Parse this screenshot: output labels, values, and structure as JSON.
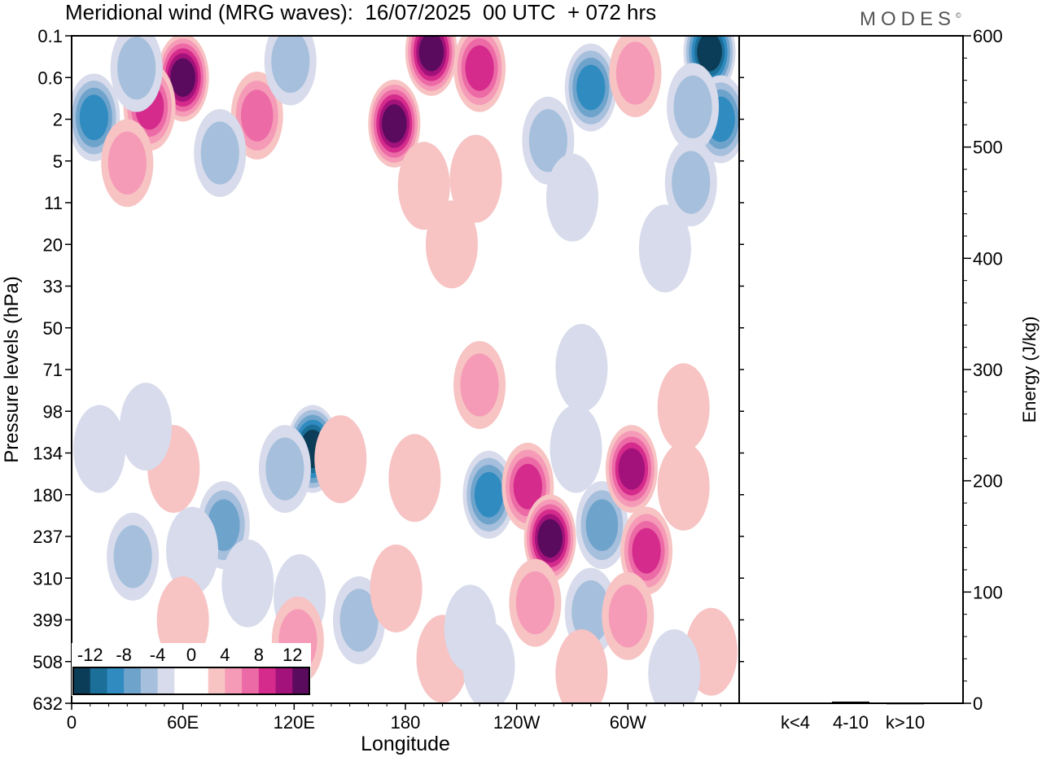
{
  "header": {
    "title": "Meridional wind (MRG waves):  16/07/2025  00 UTC  + 072 hrs",
    "logo": "MODES",
    "logo_mark": "©"
  },
  "chart_data": [
    {
      "type": "heatmap",
      "title": "Meridional wind (MRG waves):  16/07/2025  00 UTC  + 072 hrs",
      "xlabel": "Longitude",
      "ylabel": "Pressure levels (hPa)",
      "x_ticks": [
        "0",
        "60E",
        "120E",
        "180",
        "120W",
        "60W"
      ],
      "x_tick_degrees": [
        0,
        60,
        120,
        180,
        240,
        300
      ],
      "xlim": [
        0,
        360
      ],
      "y_ticks": [
        "0.1",
        "0.6",
        "2",
        "5",
        "11",
        "20",
        "33",
        "50",
        "71",
        "98",
        "134",
        "180",
        "237",
        "310",
        "399",
        "508",
        "632"
      ],
      "colorbar": {
        "labels": [
          "-12",
          "-8",
          "-4",
          "0",
          "4",
          "8",
          "12"
        ],
        "colors": [
          "#0b3d58",
          "#1b6f99",
          "#2f8bc0",
          "#6ea3cc",
          "#a5bfdc",
          "#d7dbeb",
          "#ffffff",
          "#ffffff",
          "#f7c3c3",
          "#f59ab7",
          "#ec6aa6",
          "#d42b8c",
          "#a3127a",
          "#5a0b5e"
        ]
      },
      "blobs": [
        {
          "lon": 60,
          "lev": 0.6,
          "value": 14
        },
        {
          "lon": 42,
          "lev": 1.4,
          "value": 9
        },
        {
          "lon": 100,
          "lev": 1.8,
          "value": 8
        },
        {
          "lon": 12,
          "lev": 1.9,
          "value": -10
        },
        {
          "lon": 35,
          "lev": 0.4,
          "value": -5
        },
        {
          "lon": 80,
          "lev": 4.2,
          "value": -6
        },
        {
          "lon": 30,
          "lev": 5.2,
          "value": 5
        },
        {
          "lon": 174,
          "lev": 2.2,
          "value": 14
        },
        {
          "lon": 194,
          "lev": 0.2,
          "value": 13
        },
        {
          "lon": 220,
          "lev": 0.4,
          "value": 9
        },
        {
          "lon": 118,
          "lev": 0.3,
          "value": -5
        },
        {
          "lon": 280,
          "lev": 0.8,
          "value": -10
        },
        {
          "lon": 304,
          "lev": 0.5,
          "value": 6
        },
        {
          "lon": 344,
          "lev": 0.2,
          "value": -14
        },
        {
          "lon": 350,
          "lev": 2.0,
          "value": -9
        },
        {
          "lon": 335,
          "lev": 1.4,
          "value": -6
        },
        {
          "lon": 257,
          "lev": 3.2,
          "value": -6
        },
        {
          "lon": 334,
          "lev": 7.5,
          "value": -5
        },
        {
          "lon": 190,
          "lev": 8.0,
          "value": 4
        },
        {
          "lon": 218,
          "lev": 7.0,
          "value": 4
        },
        {
          "lon": 205,
          "lev": 20,
          "value": 3
        },
        {
          "lon": 320,
          "lev": 21,
          "value": -3
        },
        {
          "lon": 130,
          "lev": 130,
          "value": -13
        },
        {
          "lon": 115,
          "lev": 150,
          "value": -6
        },
        {
          "lon": 82,
          "lev": 220,
          "value": -8
        },
        {
          "lon": 65,
          "lev": 260,
          "value": -4
        },
        {
          "lon": 33,
          "lev": 270,
          "value": -5
        },
        {
          "lon": 55,
          "lev": 150,
          "value": 4
        },
        {
          "lon": 60,
          "lev": 400,
          "value": 4
        },
        {
          "lon": 95,
          "lev": 320,
          "value": -3
        },
        {
          "lon": 123,
          "lev": 350,
          "value": -3
        },
        {
          "lon": 122,
          "lev": 450,
          "value": 5
        },
        {
          "lon": 155,
          "lev": 400,
          "value": -6
        },
        {
          "lon": 145,
          "lev": 140,
          "value": 4
        },
        {
          "lon": 185,
          "lev": 160,
          "value": 4
        },
        {
          "lon": 175,
          "lev": 330,
          "value": 4
        },
        {
          "lon": 200,
          "lev": 500,
          "value": 4
        },
        {
          "lon": 215,
          "lev": 420,
          "value": -3
        },
        {
          "lon": 225,
          "lev": 180,
          "value": -10
        },
        {
          "lon": 220,
          "lev": 80,
          "value": 5
        },
        {
          "lon": 246,
          "lev": 170,
          "value": 9
        },
        {
          "lon": 258,
          "lev": 240,
          "value": 14
        },
        {
          "lon": 250,
          "lev": 360,
          "value": 5
        },
        {
          "lon": 272,
          "lev": 130,
          "value": -3
        },
        {
          "lon": 286,
          "lev": 220,
          "value": -8
        },
        {
          "lon": 280,
          "lev": 380,
          "value": -5
        },
        {
          "lon": 302,
          "lev": 150,
          "value": 11
        },
        {
          "lon": 310,
          "lev": 260,
          "value": 9
        },
        {
          "lon": 300,
          "lev": 390,
          "value": 5
        },
        {
          "lon": 330,
          "lev": 170,
          "value": 4
        },
        {
          "lon": 330,
          "lev": 95,
          "value": 4
        },
        {
          "lon": 275,
          "lev": 70,
          "value": -3
        },
        {
          "lon": 345,
          "lev": 480,
          "value": 4
        },
        {
          "lon": 325,
          "lev": 540,
          "value": -3
        },
        {
          "lon": 275,
          "lev": 540,
          "value": 4
        },
        {
          "lon": 225,
          "lev": 520,
          "value": -3
        },
        {
          "lon": 15,
          "lev": 130,
          "value": -3
        },
        {
          "lon": 40,
          "lev": 110,
          "value": -3
        },
        {
          "lon": 270,
          "lev": 10,
          "value": -4
        }
      ]
    },
    {
      "type": "bar",
      "ylabel": "Energy (J/kg)",
      "ylim": [
        0,
        600
      ],
      "y_ticks": [
        "0",
        "100",
        "200",
        "300",
        "400",
        "500",
        "600"
      ],
      "categories": [
        "k<4",
        "4-10",
        "k>10"
      ],
      "values": [
        0.5,
        1.5,
        0.2
      ]
    }
  ]
}
